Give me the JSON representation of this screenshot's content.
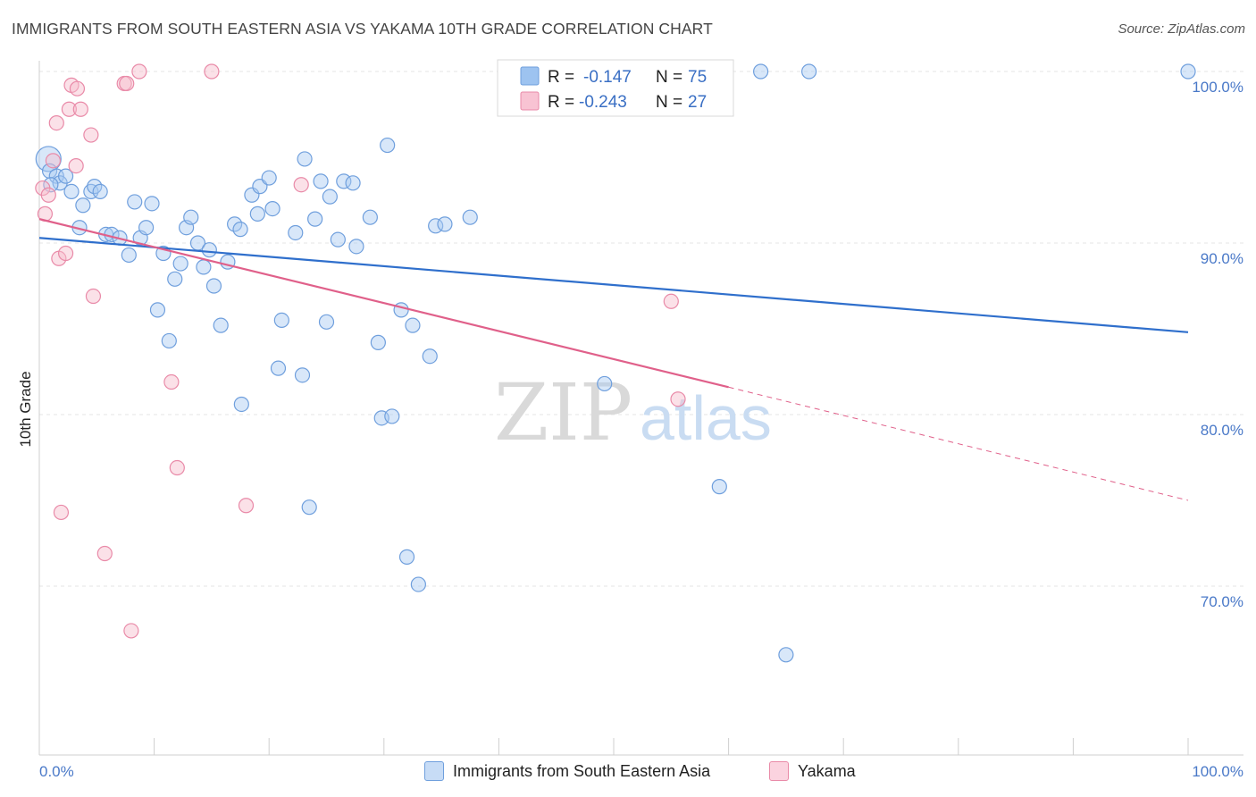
{
  "title": "IMMIGRANTS FROM SOUTH EASTERN ASIA VS YAKAMA 10TH GRADE CORRELATION CHART",
  "source": "Source: ZipAtlas.com",
  "watermark": {
    "zip": "ZIP",
    "atlas": "atlas"
  },
  "legend_box": {
    "rows": [
      {
        "r_label": "R =",
        "r_value": "-0.147",
        "n_label": "N =",
        "n_value": "75",
        "color": "#9dc3f0",
        "border": "#6f9fdd"
      },
      {
        "r_label": "R =",
        "r_value": "-0.243",
        "n_label": "N =",
        "n_value": "27",
        "color": "#f8c3d3",
        "border": "#e98aa8"
      }
    ]
  },
  "bottom_legend": [
    {
      "label": "Immigrants from South Eastern Asia",
      "color": "#c7dcf6",
      "border": "#6f9fdd"
    },
    {
      "label": "Yakama",
      "color": "#fbd3df",
      "border": "#e98aa8"
    }
  ],
  "chart_data": {
    "type": "scatter",
    "title": "IMMIGRANTS FROM SOUTH EASTERN ASIA VS YAKAMA 10TH GRADE CORRELATION CHART",
    "xlabel": "",
    "ylabel": "10th Grade",
    "xlim": [
      0,
      100
    ],
    "ylim": [
      59.5,
      101.5
    ],
    "x_ticks": [
      "0.0%",
      "100.0%"
    ],
    "y_ticks": [
      {
        "value": 100,
        "label": "100.0%"
      },
      {
        "value": 90,
        "label": "90.0%"
      },
      {
        "value": 80,
        "label": "80.0%"
      },
      {
        "value": 70,
        "label": "70.0%"
      }
    ],
    "grid": true,
    "series": [
      {
        "name": "Immigrants from South Eastern Asia",
        "color": "#6f9fdd",
        "fill": "#a9c9f1",
        "trend": {
          "x": [
            0,
            100
          ],
          "y": [
            90.3,
            84.8
          ],
          "color": "#2f6fcc"
        },
        "points": [
          [
            0.8,
            94.9
          ],
          [
            0.9,
            94.2
          ],
          [
            1.5,
            93.9
          ],
          [
            1.8,
            93.5
          ],
          [
            2.3,
            93.9
          ],
          [
            2.8,
            93.0
          ],
          [
            3.5,
            90.9
          ],
          [
            3.8,
            92.2
          ],
          [
            4.5,
            93.0
          ],
          [
            4.8,
            93.3
          ],
          [
            5.3,
            93.0
          ],
          [
            5.8,
            90.5
          ],
          [
            6.3,
            90.5
          ],
          [
            7.0,
            90.3
          ],
          [
            7.8,
            89.3
          ],
          [
            8.3,
            92.4
          ],
          [
            8.8,
            90.3
          ],
          [
            9.3,
            90.9
          ],
          [
            9.8,
            92.3
          ],
          [
            10.3,
            86.1
          ],
          [
            10.8,
            89.4
          ],
          [
            11.3,
            84.3
          ],
          [
            11.8,
            87.9
          ],
          [
            12.3,
            88.8
          ],
          [
            12.8,
            90.9
          ],
          [
            13.2,
            91.5
          ],
          [
            13.8,
            90.0
          ],
          [
            14.3,
            88.6
          ],
          [
            14.8,
            89.6
          ],
          [
            15.2,
            87.5
          ],
          [
            15.8,
            85.2
          ],
          [
            16.4,
            88.9
          ],
          [
            17.0,
            91.1
          ],
          [
            17.5,
            90.8
          ],
          [
            17.6,
            80.6
          ],
          [
            18.5,
            92.8
          ],
          [
            19.0,
            91.7
          ],
          [
            19.2,
            93.3
          ],
          [
            20.0,
            93.8
          ],
          [
            20.3,
            92.0
          ],
          [
            20.8,
            82.7
          ],
          [
            21.1,
            85.5
          ],
          [
            22.3,
            90.6
          ],
          [
            22.9,
            82.3
          ],
          [
            23.1,
            94.9
          ],
          [
            23.5,
            74.6
          ],
          [
            24.0,
            91.4
          ],
          [
            24.5,
            93.6
          ],
          [
            25.0,
            85.4
          ],
          [
            25.3,
            92.7
          ],
          [
            26.0,
            90.2
          ],
          [
            26.5,
            93.6
          ],
          [
            27.3,
            93.5
          ],
          [
            27.6,
            89.8
          ],
          [
            28.8,
            91.5
          ],
          [
            29.5,
            84.2
          ],
          [
            29.8,
            79.8
          ],
          [
            30.3,
            95.7
          ],
          [
            30.7,
            79.9
          ],
          [
            31.5,
            86.1
          ],
          [
            32.0,
            71.7
          ],
          [
            32.5,
            85.2
          ],
          [
            33.0,
            70.1
          ],
          [
            34.0,
            83.4
          ],
          [
            34.5,
            91.0
          ],
          [
            35.3,
            91.1
          ],
          [
            37.5,
            91.5
          ],
          [
            43.3,
            100.0
          ],
          [
            49.2,
            81.8
          ],
          [
            59.2,
            75.8
          ],
          [
            62.8,
            100.0
          ],
          [
            65.0,
            66.0
          ],
          [
            67.0,
            100.0
          ],
          [
            100.0,
            100.0
          ],
          [
            1.0,
            93.4
          ]
        ]
      },
      {
        "name": "Yakama",
        "color": "#e98aa8",
        "fill": "#f6bccd",
        "trend": {
          "x": [
            0,
            60
          ],
          "y": [
            91.4,
            81.6
          ],
          "dashed_to": {
            "x": 100,
            "y": 75.0
          },
          "color": "#e0608a"
        },
        "points": [
          [
            0.3,
            93.2
          ],
          [
            0.5,
            91.7
          ],
          [
            0.8,
            92.8
          ],
          [
            1.2,
            94.8
          ],
          [
            1.5,
            97.0
          ],
          [
            1.7,
            89.1
          ],
          [
            1.9,
            74.3
          ],
          [
            2.3,
            89.4
          ],
          [
            2.6,
            97.8
          ],
          [
            2.8,
            99.2
          ],
          [
            3.2,
            94.5
          ],
          [
            3.3,
            99.0
          ],
          [
            3.6,
            97.8
          ],
          [
            4.5,
            96.3
          ],
          [
            4.7,
            86.9
          ],
          [
            5.7,
            71.9
          ],
          [
            7.4,
            99.3
          ],
          [
            7.6,
            99.3
          ],
          [
            8.0,
            67.4
          ],
          [
            8.7,
            100.0
          ],
          [
            11.5,
            81.9
          ],
          [
            12.0,
            76.9
          ],
          [
            15.0,
            100.0
          ],
          [
            18.0,
            74.7
          ],
          [
            22.8,
            93.4
          ],
          [
            55.0,
            86.6
          ],
          [
            55.6,
            80.9
          ]
        ]
      }
    ],
    "stats": [
      {
        "series": "Immigrants from South Eastern Asia",
        "R": -0.147,
        "N": 75
      },
      {
        "series": "Yakama",
        "R": -0.243,
        "N": 27
      }
    ]
  }
}
